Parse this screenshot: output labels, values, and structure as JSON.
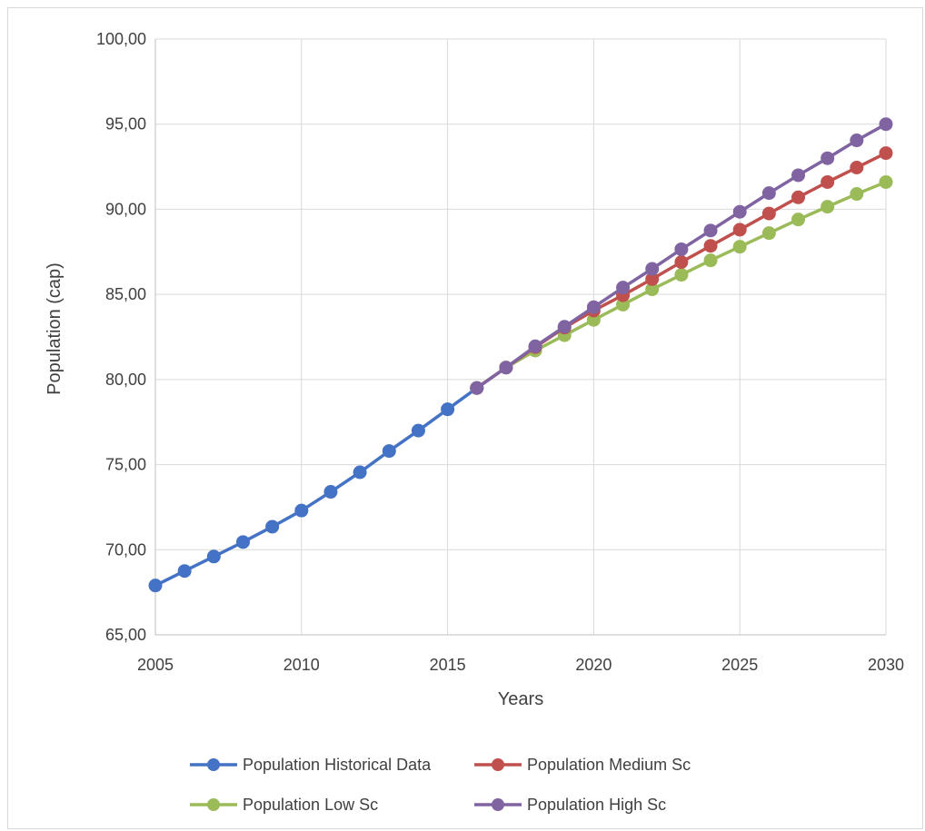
{
  "chart_data": {
    "type": "line",
    "xlabel": "Years",
    "ylabel": "Population (cap)",
    "xlim": [
      2005,
      2030
    ],
    "ylim": [
      65,
      100
    ],
    "x_ticks": [
      "2005",
      "2010",
      "2015",
      "2020",
      "2025",
      "2030"
    ],
    "y_ticks": [
      "65,00",
      "70,00",
      "75,00",
      "80,00",
      "85,00",
      "90,00",
      "95,00",
      "100,00"
    ],
    "grid": true,
    "legend_position": "bottom",
    "series": [
      {
        "name": "Population Historical Data",
        "color": "#4472c4",
        "x": [
          2005,
          2006,
          2007,
          2008,
          2009,
          2010,
          2011,
          2012,
          2013,
          2014,
          2015,
          2016
        ],
        "y": [
          67.9,
          68.75,
          69.6,
          70.45,
          71.35,
          72.3,
          73.4,
          74.55,
          75.8,
          77.0,
          78.25,
          79.5
        ]
      },
      {
        "name": "Population Medium Sc",
        "color": "#c0504d",
        "x": [
          2016,
          2017,
          2018,
          2019,
          2020,
          2021,
          2022,
          2023,
          2024,
          2025,
          2026,
          2027,
          2028,
          2029,
          2030
        ],
        "y": [
          79.5,
          80.7,
          81.9,
          83.05,
          84.05,
          84.95,
          85.9,
          86.9,
          87.85,
          88.8,
          89.75,
          90.7,
          91.6,
          92.45,
          93.3
        ]
      },
      {
        "name": "Population Low Sc",
        "color": "#9bbb59",
        "x": [
          2016,
          2017,
          2018,
          2019,
          2020,
          2021,
          2022,
          2023,
          2024,
          2025,
          2026,
          2027,
          2028,
          2029,
          2030
        ],
        "y": [
          79.5,
          80.7,
          81.7,
          82.6,
          83.5,
          84.4,
          85.3,
          86.15,
          87.0,
          87.8,
          88.6,
          89.4,
          90.15,
          90.9,
          91.6
        ]
      },
      {
        "name": "Population High Sc",
        "color": "#8064a2",
        "x": [
          2016,
          2017,
          2018,
          2019,
          2020,
          2021,
          2022,
          2023,
          2024,
          2025,
          2026,
          2027,
          2028,
          2029,
          2030
        ],
        "y": [
          79.5,
          80.7,
          81.95,
          83.1,
          84.25,
          85.4,
          86.5,
          87.65,
          88.75,
          89.85,
          90.95,
          92.0,
          93.0,
          94.05,
          95.0
        ]
      }
    ]
  }
}
